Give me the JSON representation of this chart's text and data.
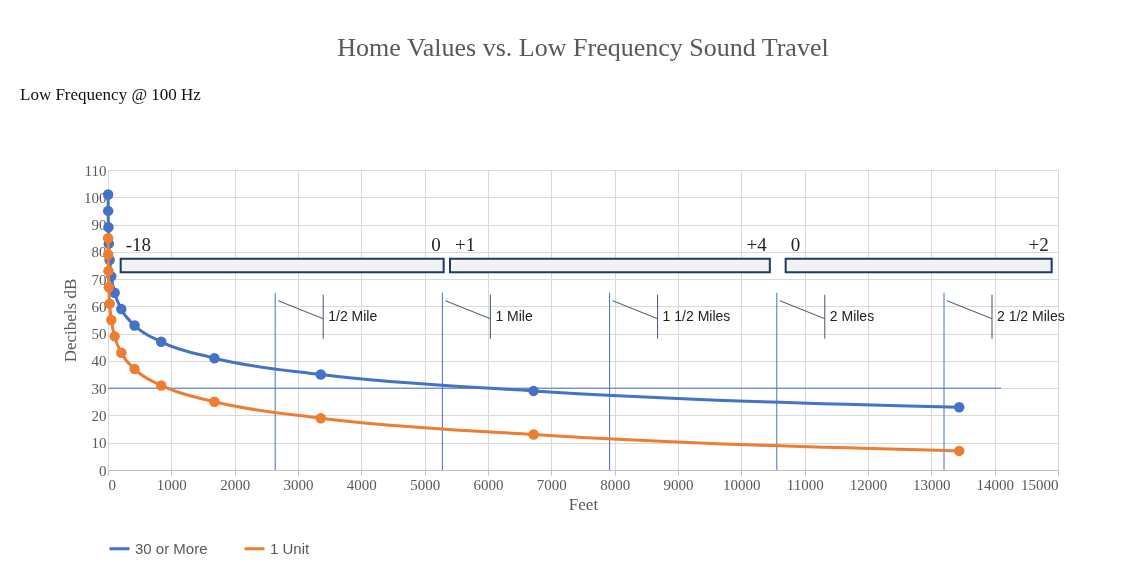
{
  "chart_data": {
    "type": "line",
    "title": "Home Values vs. Low Frequency Sound Travel",
    "xlabel": "Feet",
    "ylabel": "Decibels dB",
    "x": [
      2,
      3,
      7,
      13,
      26,
      52,
      105,
      210,
      420,
      840,
      1680,
      3360,
      6720,
      13440
    ],
    "series": [
      {
        "name": "30 or More",
        "color": "#4472c4",
        "values": [
          101,
          95,
          89,
          83,
          77,
          71,
          65,
          59,
          53,
          47,
          41,
          35,
          29,
          23
        ]
      },
      {
        "name": "1 Unit",
        "color": "#ed7d31",
        "values": [
          85,
          79,
          73,
          67,
          61,
          55,
          49,
          43,
          37,
          31,
          25,
          19,
          13,
          7
        ]
      }
    ],
    "xlim": [
      0,
      15000
    ],
    "xticks": [
      0,
      1000,
      2000,
      3000,
      4000,
      5000,
      6000,
      7000,
      8000,
      9000,
      10000,
      11000,
      12000,
      13000,
      14000,
      15000
    ],
    "ylim": [
      0,
      110
    ],
    "yticks": [
      0,
      10,
      20,
      30,
      40,
      50,
      60,
      70,
      80,
      90,
      100,
      110
    ],
    "grid": true,
    "legend": "bottom",
    "marker": "circle",
    "line_style": "solid",
    "ref_lines": [
      {
        "axis": "y",
        "value": 30,
        "label": null,
        "color": "#4472c4"
      },
      {
        "axis": "x",
        "value": 2640,
        "label": "1/2 Mile",
        "color": "#4472c4"
      },
      {
        "axis": "x",
        "value": 5280,
        "label": "1 Mile",
        "color": "#4472c4"
      },
      {
        "axis": "x",
        "value": 7920,
        "label": "1 1/2 Miles",
        "color": "#4472c4"
      },
      {
        "axis": "x",
        "value": 10560,
        "label": "2 Miles",
        "color": "#4472c4"
      },
      {
        "axis": "x",
        "value": 13200,
        "label": "2 1/2 Miles",
        "color": "#4472c4"
      }
    ],
    "bands": [
      {
        "axis": "x",
        "from": 200,
        "to": 5300,
        "color": "#f2f2f2"
      },
      {
        "axis": "x",
        "from": 5400,
        "to": 10450,
        "color": "#f2f2f2"
      },
      {
        "axis": "x",
        "from": 10700,
        "to": 14900,
        "color": "#f2f2f2"
      }
    ],
    "annotations": [
      "Low Frequency @ 100 Hz",
      "-18",
      "0",
      "+1",
      "+4",
      "0",
      "+2"
    ]
  }
}
